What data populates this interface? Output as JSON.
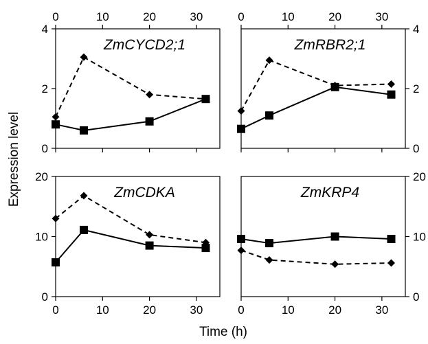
{
  "chart_data": [
    {
      "type": "line",
      "title": "ZmCYCD2;1",
      "x": [
        0,
        6,
        20,
        32
      ],
      "series": [
        {
          "line_style": "solid",
          "marker": "square",
          "values": [
            0.8,
            0.6,
            0.9,
            1.65
          ]
        },
        {
          "line_style": "dashed",
          "marker": "diamond",
          "values": [
            1.05,
            3.05,
            1.8,
            1.65
          ]
        }
      ],
      "xlim": [
        0,
        35
      ],
      "ylim": [
        0,
        4
      ],
      "xticks": [
        "0",
        "10",
        "20",
        "30"
      ],
      "yticks": [
        "0",
        "2",
        "4"
      ],
      "ytick_values": [
        0,
        2,
        4
      ],
      "xticks_top": true,
      "yticks_side": "left"
    },
    {
      "type": "line",
      "title": "ZmRBR2;1",
      "x": [
        0,
        6,
        20,
        32
      ],
      "series": [
        {
          "line_style": "solid",
          "marker": "square",
          "values": [
            0.65,
            1.1,
            2.05,
            1.8
          ]
        },
        {
          "line_style": "dashed",
          "marker": "diamond",
          "values": [
            1.25,
            2.95,
            2.1,
            2.15
          ]
        }
      ],
      "xlim": [
        0,
        35
      ],
      "ylim": [
        0,
        4
      ],
      "xticks": [
        "0",
        "10",
        "20",
        "30"
      ],
      "yticks": [
        "0",
        "2",
        "4"
      ],
      "ytick_values": [
        0,
        2,
        4
      ],
      "xticks_top": true,
      "yticks_side": "right"
    },
    {
      "type": "line",
      "title": "ZmCDKA",
      "x": [
        0,
        6,
        20,
        32
      ],
      "series": [
        {
          "line_style": "solid",
          "marker": "square",
          "values": [
            5.7,
            11.1,
            8.5,
            8.1
          ]
        },
        {
          "line_style": "dashed",
          "marker": "diamond",
          "values": [
            13.0,
            16.8,
            10.3,
            9.0
          ]
        }
      ],
      "xlim": [
        0,
        35
      ],
      "ylim": [
        0,
        20
      ],
      "xticks": [
        "0",
        "10",
        "20",
        "30"
      ],
      "yticks": [
        "0",
        "10",
        "20"
      ],
      "ytick_values": [
        0,
        10,
        20
      ],
      "xticks_top": false,
      "yticks_side": "left"
    },
    {
      "type": "line",
      "title": "ZmKRP4",
      "x": [
        0,
        6,
        20,
        32
      ],
      "series": [
        {
          "line_style": "solid",
          "marker": "square",
          "values": [
            9.6,
            8.9,
            10.0,
            9.6
          ]
        },
        {
          "line_style": "dashed",
          "marker": "diamond",
          "values": [
            7.7,
            6.1,
            5.4,
            5.6
          ]
        }
      ],
      "xlim": [
        0,
        35
      ],
      "ylim": [
        0,
        20
      ],
      "xticks": [
        "0",
        "10",
        "20",
        "30"
      ],
      "yticks": [
        "0",
        "10",
        "20"
      ],
      "ytick_values": [
        0,
        10,
        20
      ],
      "xticks_top": false,
      "yticks_side": "right"
    }
  ],
  "labels": {
    "ylabel": "Expression level",
    "xlabel": "Time (h)"
  }
}
